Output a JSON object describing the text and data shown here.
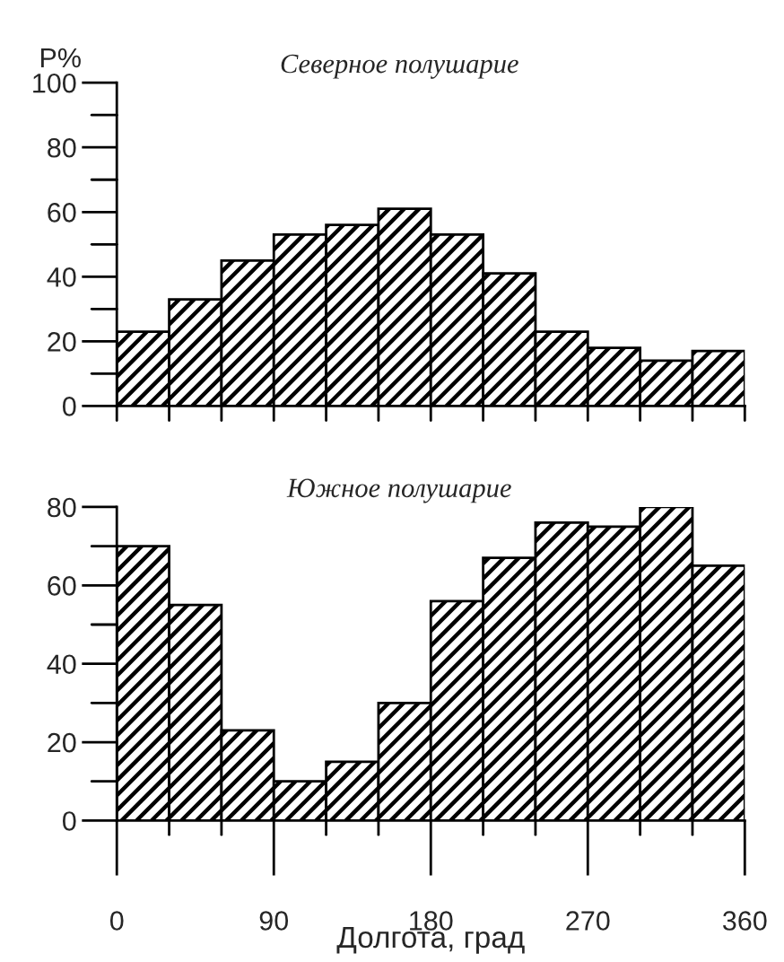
{
  "chart_data": [
    {
      "type": "histogram",
      "title": "Северное полушарие",
      "ylabel": "P%",
      "color": "#000000",
      "bins": [
        0,
        30,
        60,
        90,
        120,
        150,
        180,
        210,
        240,
        270,
        300,
        330,
        360
      ],
      "values": [
        23,
        33,
        45,
        53,
        56,
        61,
        53,
        41,
        23,
        18,
        14,
        17
      ],
      "xlim": [
        0,
        360
      ],
      "xticks": [
        {
          "value": 0,
          "label": null
        },
        {
          "value": 30,
          "label": null
        },
        {
          "value": 60,
          "label": null
        },
        {
          "value": 90,
          "label": null
        },
        {
          "value": 120,
          "label": null
        },
        {
          "value": 150,
          "label": null
        },
        {
          "value": 180,
          "label": null
        },
        {
          "value": 210,
          "label": null
        },
        {
          "value": 240,
          "label": null
        },
        {
          "value": 270,
          "label": null
        },
        {
          "value": 300,
          "label": null
        },
        {
          "value": 330,
          "label": null
        },
        {
          "value": 360,
          "label": null
        }
      ],
      "ylim": [
        0,
        100
      ],
      "yticks": [
        0,
        {
          "value": 10,
          "label": null
        },
        20,
        {
          "value": 30,
          "label": null
        },
        40,
        {
          "value": 50,
          "label": null
        },
        60,
        {
          "value": 70,
          "label": null
        },
        80,
        {
          "value": 90,
          "label": null
        },
        100
      ],
      "tick_labels": "y",
      "grid": false
    },
    {
      "type": "histogram",
      "title": "Южное полушарие",
      "xlabel": "Долгота, град",
      "color": "#000000",
      "bins": [
        0,
        30,
        60,
        90,
        120,
        150,
        180,
        210,
        240,
        270,
        300,
        330,
        360
      ],
      "values": [
        70,
        55,
        23,
        10,
        15,
        30,
        56,
        67,
        76,
        75,
        80,
        65
      ],
      "xlim": [
        0,
        360
      ],
      "xticks": [
        0,
        {
          "value": 30,
          "label": null
        },
        {
          "value": 60,
          "label": null
        },
        90,
        {
          "value": 120,
          "label": null
        },
        {
          "value": 150,
          "label": null
        },
        180,
        {
          "value": 210,
          "label": null
        },
        {
          "value": 240,
          "label": null
        },
        270,
        {
          "value": 300,
          "label": null
        },
        {
          "value": 330,
          "label": null
        },
        360
      ],
      "ylim": [
        0,
        80
      ],
      "yticks": [
        0,
        {
          "value": 10,
          "label": null
        },
        20,
        {
          "value": 30,
          "label": null
        },
        40,
        {
          "value": 50,
          "label": null
        },
        60,
        {
          "value": 70,
          "label": null
        },
        80
      ],
      "grid": false
    }
  ]
}
